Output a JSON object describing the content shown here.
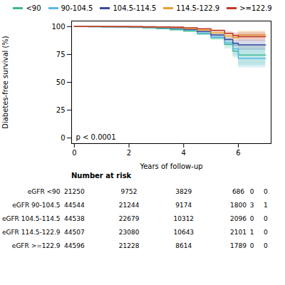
{
  "chart_data": {
    "type": "step",
    "xlabel": "Years of follow-up",
    "ylabel": "Diabetes-free survival (%)",
    "xlim": [
      -0.1,
      7.2
    ],
    "ylim": [
      -5,
      105
    ],
    "xticks": [
      0,
      2,
      4,
      6
    ],
    "yticks": [
      0,
      25,
      50,
      75,
      100
    ],
    "grid": false,
    "legend": "top",
    "annotation": "p < 0.0001",
    "series": [
      {
        "name": "<90",
        "color": "#3dba84",
        "x": [
          0,
          0.5,
          1.0,
          1.5,
          2.0,
          2.5,
          3.0,
          3.5,
          4.0,
          4.5,
          5.0,
          5.5,
          5.8,
          6.0,
          6.5,
          7.0
        ],
        "values": [
          100,
          99.9,
          99.8,
          99.6,
          99.3,
          98.8,
          98.1,
          97.2,
          96.0,
          93.5,
          90.0,
          84.0,
          78.0,
          74.5,
          74.5,
          74.5
        ],
        "ci_low": [
          100,
          99.8,
          99.6,
          99.3,
          98.9,
          98.3,
          97.5,
          96.4,
          95.0,
          92.0,
          87.5,
          80.0,
          72.0,
          65.0,
          65.0,
          65.0
        ],
        "ci_high": [
          100,
          100,
          100,
          100,
          99.7,
          99.3,
          98.7,
          98.0,
          97.0,
          95.0,
          92.5,
          88.0,
          84.0,
          84.0,
          84.0,
          84.0
        ]
      },
      {
        "name": "90-104.5",
        "color": "#5bb8e8",
        "x": [
          0,
          0.5,
          1.0,
          1.5,
          2.0,
          2.5,
          3.0,
          3.5,
          4.0,
          4.5,
          5.0,
          5.5,
          5.8,
          6.0,
          6.5,
          7.0
        ],
        "values": [
          100,
          99.95,
          99.9,
          99.8,
          99.6,
          99.3,
          98.8,
          98.0,
          96.8,
          94.0,
          90.5,
          85.5,
          80.0,
          71.5,
          71.5,
          71.5
        ],
        "ci_low": [
          100,
          99.9,
          99.8,
          99.7,
          99.4,
          99.0,
          98.4,
          97.5,
          96.2,
          93.0,
          88.5,
          82.5,
          74.0,
          63.0,
          63.0,
          63.0
        ],
        "ci_high": [
          100,
          100,
          100,
          99.9,
          99.8,
          99.6,
          99.2,
          98.5,
          97.4,
          95.0,
          92.5,
          88.5,
          86.0,
          80.0,
          80.0,
          80.0
        ]
      },
      {
        "name": "104.5-114.5",
        "color": "#3b4a9e",
        "x": [
          0,
          0.5,
          1.0,
          1.5,
          2.0,
          2.5,
          3.0,
          3.5,
          4.0,
          4.5,
          5.0,
          5.5,
          5.8,
          6.0,
          6.5,
          7.0
        ],
        "values": [
          100,
          99.97,
          99.95,
          99.9,
          99.8,
          99.6,
          99.2,
          98.6,
          97.5,
          95.5,
          92.5,
          88.5,
          85.0,
          83.5,
          83.5,
          83.5
        ],
        "ci_low": [
          100,
          99.95,
          99.9,
          99.85,
          99.7,
          99.4,
          98.9,
          98.2,
          97.0,
          94.5,
          91.0,
          86.5,
          82.0,
          79.0,
          79.0,
          79.0
        ],
        "ci_high": [
          100,
          99.99,
          100,
          99.95,
          99.9,
          99.8,
          99.5,
          99.0,
          98.0,
          96.5,
          94.0,
          90.5,
          88.0,
          88.0,
          88.0,
          88.0
        ]
      },
      {
        "name": "114.5-122.9",
        "color": "#e8a030",
        "x": [
          0,
          0.5,
          1.0,
          1.5,
          2.0,
          2.5,
          3.0,
          3.5,
          4.0,
          4.5,
          5.0,
          5.5,
          5.8,
          6.0,
          6.5,
          7.0
        ],
        "values": [
          100,
          99.98,
          99.97,
          99.95,
          99.9,
          99.75,
          99.5,
          99.1,
          98.2,
          96.8,
          94.5,
          91.5,
          90.0,
          92.5,
          92.5,
          92.5
        ],
        "ci_low": [
          100,
          99.96,
          99.94,
          99.92,
          99.85,
          99.65,
          99.3,
          98.8,
          97.7,
          96.0,
          93.2,
          89.5,
          87.0,
          89.0,
          89.0,
          89.0
        ],
        "ci_high": [
          100,
          100,
          100,
          99.98,
          99.95,
          99.85,
          99.7,
          99.4,
          98.7,
          97.6,
          95.8,
          93.5,
          93.0,
          96.0,
          96.0,
          96.0
        ]
      },
      {
        "name": ">=122.9",
        "color": "#c0392b",
        "x": [
          0,
          0.5,
          1.0,
          1.5,
          2.0,
          2.5,
          3.0,
          3.5,
          4.0,
          4.5,
          5.0,
          5.5,
          5.8,
          6.0,
          6.5,
          7.0
        ],
        "values": [
          100,
          99.99,
          99.99,
          99.98,
          99.97,
          99.92,
          99.8,
          99.6,
          99.0,
          98.0,
          96.5,
          94.0,
          92.0,
          91.0,
          91.0,
          91.0
        ],
        "ci_low": [
          100,
          99.97,
          99.97,
          99.95,
          99.94,
          99.87,
          99.7,
          99.4,
          98.7,
          97.4,
          95.5,
          92.5,
          89.5,
          87.0,
          87.0,
          87.0
        ],
        "ci_high": [
          100,
          100,
          100,
          100,
          100,
          99.97,
          99.9,
          99.8,
          99.3,
          98.6,
          97.5,
          95.5,
          94.5,
          95.0,
          95.0,
          95.0
        ]
      }
    ],
    "risk_table": {
      "title": "Number at risk",
      "labels": [
        "eGFR <90",
        "eGFR 90-104.5",
        "eGFR 104.5-114.5",
        "eGFR 114.5-122.9",
        "eGFR >=122.9"
      ],
      "x": [
        0,
        2,
        4,
        6,
        6.5,
        7
      ],
      "values": [
        [
          21250,
          9752,
          3829,
          686,
          0,
          0
        ],
        [
          44544,
          21244,
          9174,
          1800,
          3,
          1
        ],
        [
          44538,
          22679,
          10312,
          2096,
          0,
          0
        ],
        [
          44507,
          23080,
          10643,
          2101,
          1,
          0
        ],
        [
          44596,
          21228,
          8614,
          1789,
          0,
          0
        ]
      ]
    }
  }
}
